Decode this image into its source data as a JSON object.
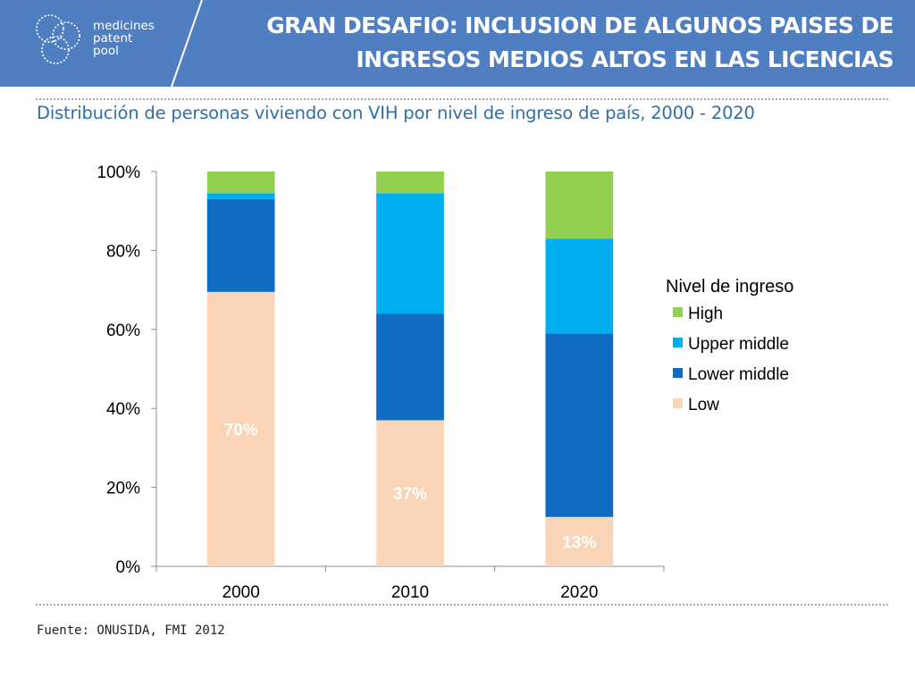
{
  "header": {
    "logo_lines": [
      "medicines",
      "patent",
      "pool"
    ],
    "title_line1": "GRAN DESAFIO: INCLUSION DE ALGUNOS PAISES DE",
    "title_line2": "INGRESOS MEDIOS ALTOS EN LAS LICENCIAS",
    "background": "#4f7fc1"
  },
  "subtitle": "Distribución de personas viviendo con VIH por nivel de ingreso de país, 2000 - 2020",
  "source": "Fuente: ONUSIDA, FMI 2012",
  "chart_data": {
    "type": "bar",
    "stacked": true,
    "title": "",
    "xlabel": "",
    "ylabel": "",
    "categories": [
      "2000",
      "2010",
      "2020"
    ],
    "ylim": [
      0,
      100
    ],
    "yticks": [
      "0%",
      "20%",
      "40%",
      "60%",
      "80%",
      "100%"
    ],
    "legend_title": "Nivel de ingreso",
    "legend_position": "right",
    "series": [
      {
        "name": "Low",
        "color": "#f9d4b6",
        "values": [
          69.5,
          37,
          12.5
        ],
        "labels": [
          "70%",
          "37%",
          "13%"
        ]
      },
      {
        "name": "Lower middle",
        "color": "#0f6cc2",
        "values": [
          23.5,
          27,
          46.5
        ]
      },
      {
        "name": "Upper middle",
        "color": "#00aeef",
        "values": [
          1.5,
          30.5,
          24
        ]
      },
      {
        "name": "High",
        "color": "#92d050",
        "values": [
          5.5,
          5.5,
          17
        ]
      }
    ]
  }
}
